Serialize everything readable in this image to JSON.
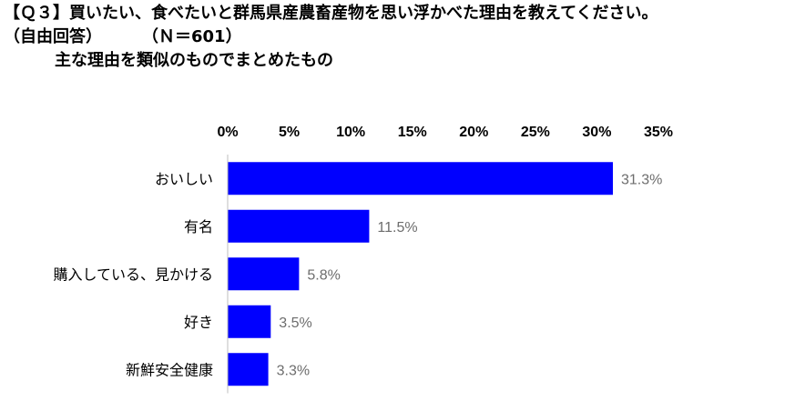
{
  "header": {
    "line1": "【Ｑ３】買いたい、食べたいと群馬県産農畜産物を思い浮かべた理由を教えてください。",
    "line2a": "（自由回答）",
    "line2b": "（Ｎ＝601）",
    "line3": "主な理由を類似のものでまとめたもの"
  },
  "colors": {
    "bar": "#0000ff",
    "axis": "#bfbfbf",
    "data_label": "#6d6d6d"
  },
  "chart_data": {
    "type": "bar",
    "orientation": "horizontal",
    "categories": [
      "おいしい",
      "有名",
      "購入している、見かける",
      "好き",
      "新鮮安全健康"
    ],
    "values": [
      31.3,
      11.5,
      5.8,
      3.5,
      3.3
    ],
    "value_labels": [
      "31.3%",
      "11.5%",
      "5.8%",
      "3.5%",
      "3.3%"
    ],
    "x_ticks": [
      0,
      5,
      10,
      15,
      20,
      25,
      30,
      35
    ],
    "x_tick_labels": [
      "0%",
      "5%",
      "10%",
      "15%",
      "20%",
      "25%",
      "30%",
      "35%"
    ],
    "xlim": [
      0,
      35
    ],
    "x_axis_position": "top",
    "grid": false,
    "legend": "none"
  }
}
